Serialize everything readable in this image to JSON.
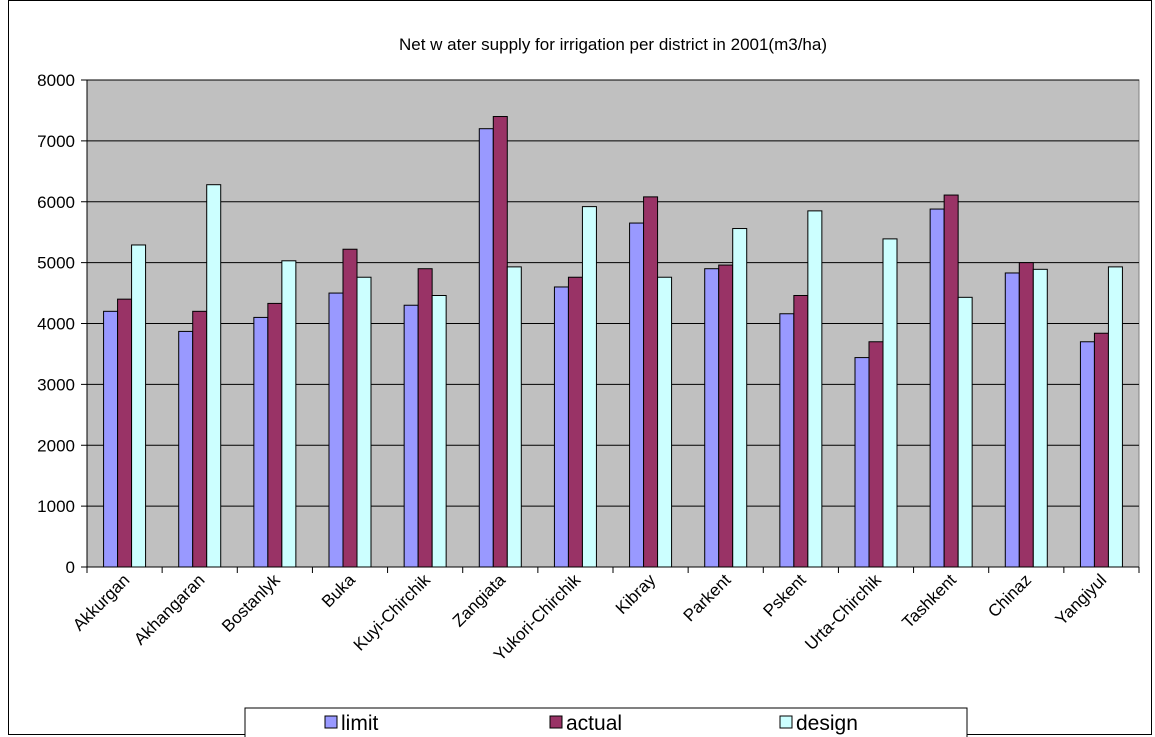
{
  "chart_data": {
    "type": "bar",
    "title": "Net w ater supply for irrigation per district in 2001(m3/ha)",
    "xlabel": "",
    "ylabel": "",
    "ylim": [
      0,
      8000
    ],
    "yticks": [
      0,
      1000,
      2000,
      3000,
      4000,
      5000,
      6000,
      7000,
      8000
    ],
    "grid": true,
    "legend_position": "bottom",
    "categories": [
      "Akkurgan",
      "Akhangaran",
      "Bostanlyk",
      "Buka",
      "Kuyi-Chirchik",
      "Zangiata",
      "Yukori-Chirchik",
      "Kibray",
      "Parkent",
      "Pskent",
      "Urta-Chirchik",
      "Tashkent",
      "Chinaz",
      "Yangiyul"
    ],
    "series": [
      {
        "name": "limit",
        "color": "#9999ff",
        "values": [
          4200,
          3870,
          4100,
          4500,
          4300,
          7200,
          4600,
          5650,
          4900,
          4160,
          3440,
          5880,
          4830,
          3700
        ]
      },
      {
        "name": "actual",
        "color": "#993366",
        "values": [
          4400,
          4200,
          4330,
          5220,
          4900,
          7400,
          4760,
          6080,
          4960,
          4460,
          3700,
          6110,
          5000,
          3840
        ]
      },
      {
        "name": "design",
        "color": "#ccffff",
        "values": [
          5290,
          6280,
          5030,
          4760,
          4460,
          4930,
          5920,
          4760,
          5560,
          5850,
          5390,
          4430,
          4890,
          4930
        ]
      }
    ],
    "plot_background": "#c0c0c0"
  }
}
